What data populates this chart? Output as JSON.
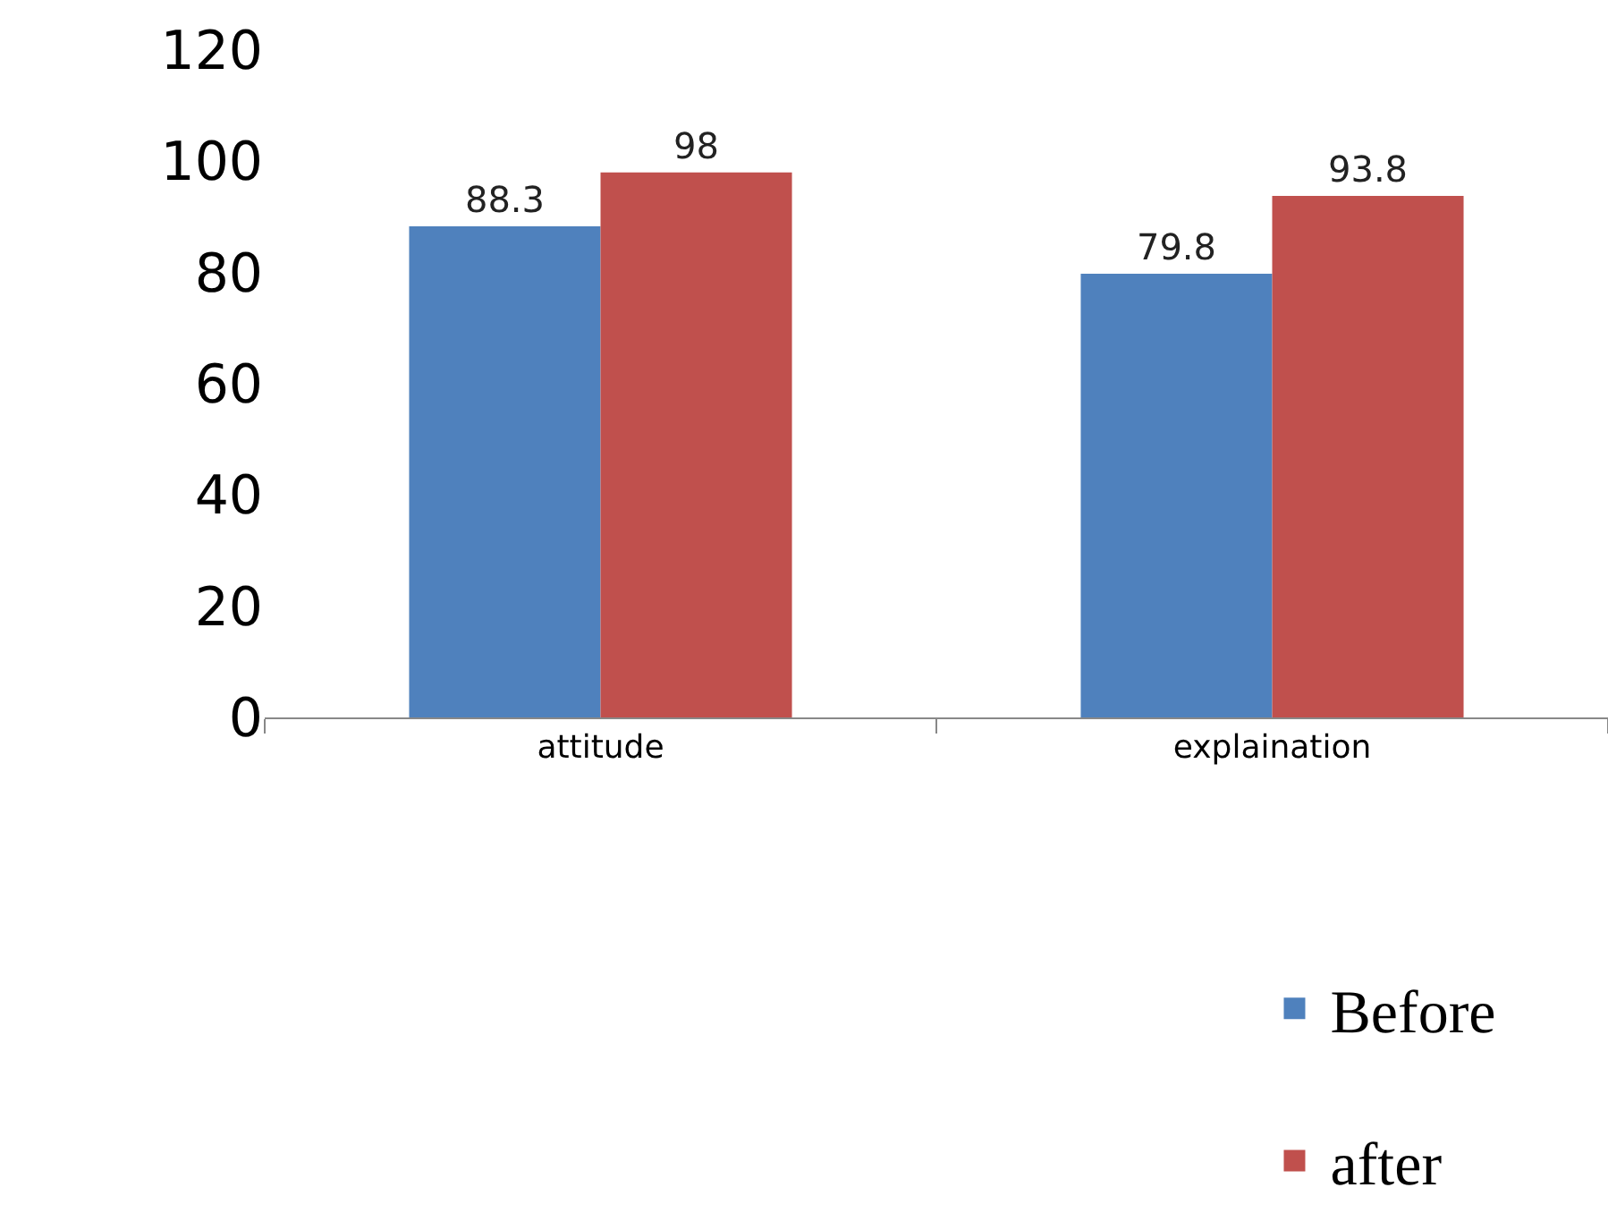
{
  "chart_data": {
    "type": "bar",
    "categories": [
      "attitude",
      "explaination"
    ],
    "series": [
      {
        "name": "Before",
        "color": "#4f81bd",
        "values": [
          88.3,
          79.8
        ]
      },
      {
        "name": "after",
        "color": "#c0504d",
        "values": [
          98,
          93.8
        ]
      }
    ],
    "ylim": [
      0,
      120
    ],
    "yticks": [
      0,
      20,
      40,
      60,
      80,
      100,
      120
    ],
    "grid": false,
    "legend": "bottom right",
    "data_labels": true
  }
}
